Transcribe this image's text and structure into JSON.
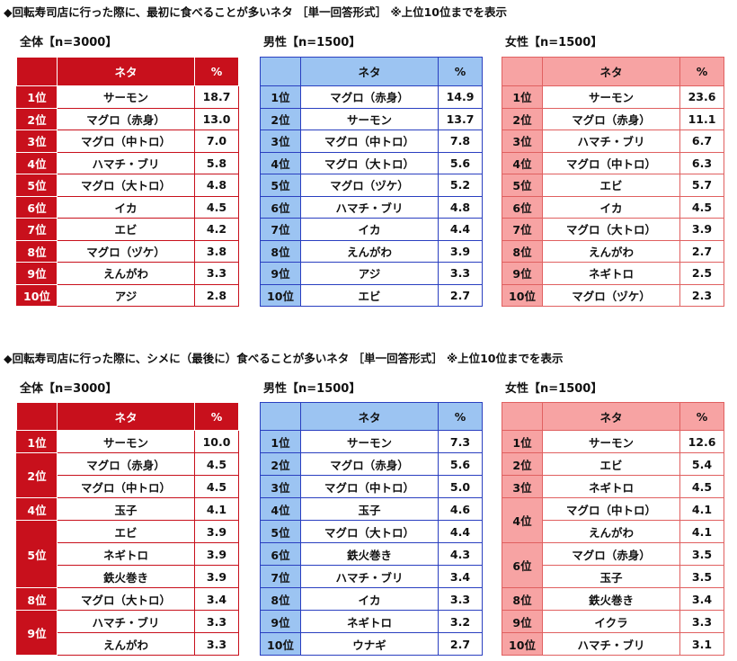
{
  "sections": [
    {
      "title": "◆回転寿司店に行った際に、最初に食べることが多いネタ ［単一回答形式］ ※上位10位までを表示",
      "tables": [
        {
          "label": "全体【n=3000】",
          "header": {
            "neta": "ネタ",
            "pct": "%"
          },
          "groups": [
            {
              "rank": "1位",
              "items": [
                {
                  "neta": "サーモン",
                  "pct": "18.7"
                }
              ]
            },
            {
              "rank": "2位",
              "items": [
                {
                  "neta": "マグロ（赤身）",
                  "pct": "13.0"
                }
              ]
            },
            {
              "rank": "3位",
              "items": [
                {
                  "neta": "マグロ（中トロ）",
                  "pct": "7.0"
                }
              ]
            },
            {
              "rank": "4位",
              "items": [
                {
                  "neta": "ハマチ・ブリ",
                  "pct": "5.8"
                }
              ]
            },
            {
              "rank": "5位",
              "items": [
                {
                  "neta": "マグロ（大トロ）",
                  "pct": "4.8"
                }
              ]
            },
            {
              "rank": "6位",
              "items": [
                {
                  "neta": "イカ",
                  "pct": "4.5"
                }
              ]
            },
            {
              "rank": "7位",
              "items": [
                {
                  "neta": "エビ",
                  "pct": "4.2"
                }
              ]
            },
            {
              "rank": "8位",
              "items": [
                {
                  "neta": "マグロ（ヅケ）",
                  "pct": "3.8"
                }
              ]
            },
            {
              "rank": "9位",
              "items": [
                {
                  "neta": "えんがわ",
                  "pct": "3.3"
                }
              ]
            },
            {
              "rank": "10位",
              "items": [
                {
                  "neta": "アジ",
                  "pct": "2.8"
                }
              ]
            }
          ]
        },
        {
          "label": "男性【n=1500】",
          "header": {
            "neta": "ネタ",
            "pct": "%"
          },
          "groups": [
            {
              "rank": "1位",
              "items": [
                {
                  "neta": "マグロ（赤身）",
                  "pct": "14.9"
                }
              ]
            },
            {
              "rank": "2位",
              "items": [
                {
                  "neta": "サーモン",
                  "pct": "13.7"
                }
              ]
            },
            {
              "rank": "3位",
              "items": [
                {
                  "neta": "マグロ（中トロ）",
                  "pct": "7.8"
                }
              ]
            },
            {
              "rank": "4位",
              "items": [
                {
                  "neta": "マグロ（大トロ）",
                  "pct": "5.6"
                }
              ]
            },
            {
              "rank": "5位",
              "items": [
                {
                  "neta": "マグロ（ヅケ）",
                  "pct": "5.2"
                }
              ]
            },
            {
              "rank": "6位",
              "items": [
                {
                  "neta": "ハマチ・ブリ",
                  "pct": "4.8"
                }
              ]
            },
            {
              "rank": "7位",
              "items": [
                {
                  "neta": "イカ",
                  "pct": "4.4"
                }
              ]
            },
            {
              "rank": "8位",
              "items": [
                {
                  "neta": "えんがわ",
                  "pct": "3.9"
                }
              ]
            },
            {
              "rank": "9位",
              "items": [
                {
                  "neta": "アジ",
                  "pct": "3.3"
                }
              ]
            },
            {
              "rank": "10位",
              "items": [
                {
                  "neta": "エビ",
                  "pct": "2.7"
                }
              ]
            }
          ]
        },
        {
          "label": "女性【n=1500】",
          "header": {
            "neta": "ネタ",
            "pct": "%"
          },
          "groups": [
            {
              "rank": "1位",
              "items": [
                {
                  "neta": "サーモン",
                  "pct": "23.6"
                }
              ]
            },
            {
              "rank": "2位",
              "items": [
                {
                  "neta": "マグロ（赤身）",
                  "pct": "11.1"
                }
              ]
            },
            {
              "rank": "3位",
              "items": [
                {
                  "neta": "ハマチ・ブリ",
                  "pct": "6.7"
                }
              ]
            },
            {
              "rank": "4位",
              "items": [
                {
                  "neta": "マグロ（中トロ）",
                  "pct": "6.3"
                }
              ]
            },
            {
              "rank": "5位",
              "items": [
                {
                  "neta": "エビ",
                  "pct": "5.7"
                }
              ]
            },
            {
              "rank": "6位",
              "items": [
                {
                  "neta": "イカ",
                  "pct": "4.5"
                }
              ]
            },
            {
              "rank": "7位",
              "items": [
                {
                  "neta": "マグロ（大トロ）",
                  "pct": "3.9"
                }
              ]
            },
            {
              "rank": "8位",
              "items": [
                {
                  "neta": "えんがわ",
                  "pct": "2.7"
                }
              ]
            },
            {
              "rank": "9位",
              "items": [
                {
                  "neta": "ネギトロ",
                  "pct": "2.5"
                }
              ]
            },
            {
              "rank": "10位",
              "items": [
                {
                  "neta": "マグロ（ヅケ）",
                  "pct": "2.3"
                }
              ]
            }
          ]
        }
      ]
    },
    {
      "title": "◆回転寿司店に行った際に、シメに（最後に）食べることが多いネタ ［単一回答形式］ ※上位10位までを表示",
      "tables": [
        {
          "label": "全体【n=3000】",
          "header": {
            "neta": "ネタ",
            "pct": "%"
          },
          "groups": [
            {
              "rank": "1位",
              "items": [
                {
                  "neta": "サーモン",
                  "pct": "10.0"
                }
              ]
            },
            {
              "rank": "2位",
              "items": [
                {
                  "neta": "マグロ（赤身）",
                  "pct": "4.5"
                },
                {
                  "neta": "マグロ（中トロ）",
                  "pct": "4.5"
                }
              ]
            },
            {
              "rank": "4位",
              "items": [
                {
                  "neta": "玉子",
                  "pct": "4.1"
                }
              ]
            },
            {
              "rank": "5位",
              "items": [
                {
                  "neta": "エビ",
                  "pct": "3.9"
                },
                {
                  "neta": "ネギトロ",
                  "pct": "3.9"
                },
                {
                  "neta": "鉄火巻き",
                  "pct": "3.9"
                }
              ]
            },
            {
              "rank": "8位",
              "items": [
                {
                  "neta": "マグロ（大トロ）",
                  "pct": "3.4"
                }
              ]
            },
            {
              "rank": "9位",
              "items": [
                {
                  "neta": "ハマチ・ブリ",
                  "pct": "3.3"
                },
                {
                  "neta": "えんがわ",
                  "pct": "3.3"
                }
              ]
            }
          ]
        },
        {
          "label": "男性【n=1500】",
          "header": {
            "neta": "ネタ",
            "pct": "%"
          },
          "groups": [
            {
              "rank": "1位",
              "items": [
                {
                  "neta": "サーモン",
                  "pct": "7.3"
                }
              ]
            },
            {
              "rank": "2位",
              "items": [
                {
                  "neta": "マグロ（赤身）",
                  "pct": "5.6"
                }
              ]
            },
            {
              "rank": "3位",
              "items": [
                {
                  "neta": "マグロ（中トロ）",
                  "pct": "5.0"
                }
              ]
            },
            {
              "rank": "4位",
              "items": [
                {
                  "neta": "玉子",
                  "pct": "4.6"
                }
              ]
            },
            {
              "rank": "5位",
              "items": [
                {
                  "neta": "マグロ（大トロ）",
                  "pct": "4.4"
                }
              ]
            },
            {
              "rank": "6位",
              "items": [
                {
                  "neta": "鉄火巻き",
                  "pct": "4.3"
                }
              ]
            },
            {
              "rank": "7位",
              "items": [
                {
                  "neta": "ハマチ・ブリ",
                  "pct": "3.4"
                }
              ]
            },
            {
              "rank": "8位",
              "items": [
                {
                  "neta": "イカ",
                  "pct": "3.3"
                }
              ]
            },
            {
              "rank": "9位",
              "items": [
                {
                  "neta": "ネギトロ",
                  "pct": "3.2"
                }
              ]
            },
            {
              "rank": "10位",
              "items": [
                {
                  "neta": "ウナギ",
                  "pct": "2.7"
                }
              ]
            }
          ]
        },
        {
          "label": "女性【n=1500】",
          "header": {
            "neta": "ネタ",
            "pct": "%"
          },
          "groups": [
            {
              "rank": "1位",
              "items": [
                {
                  "neta": "サーモン",
                  "pct": "12.6"
                }
              ]
            },
            {
              "rank": "2位",
              "items": [
                {
                  "neta": "エビ",
                  "pct": "5.4"
                }
              ]
            },
            {
              "rank": "3位",
              "items": [
                {
                  "neta": "ネギトロ",
                  "pct": "4.5"
                }
              ]
            },
            {
              "rank": "4位",
              "items": [
                {
                  "neta": "マグロ（中トロ）",
                  "pct": "4.1"
                },
                {
                  "neta": "えんがわ",
                  "pct": "4.1"
                }
              ]
            },
            {
              "rank": "6位",
              "items": [
                {
                  "neta": "マグロ（赤身）",
                  "pct": "3.5"
                },
                {
                  "neta": "玉子",
                  "pct": "3.5"
                }
              ]
            },
            {
              "rank": "8位",
              "items": [
                {
                  "neta": "鉄火巻き",
                  "pct": "3.4"
                }
              ]
            },
            {
              "rank": "9位",
              "items": [
                {
                  "neta": "イクラ",
                  "pct": "3.3"
                }
              ]
            },
            {
              "rank": "10位",
              "items": [
                {
                  "neta": "ハマチ・ブリ",
                  "pct": "3.1"
                }
              ]
            }
          ]
        }
      ]
    }
  ]
}
